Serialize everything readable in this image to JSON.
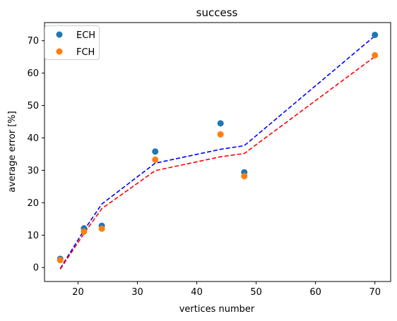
{
  "chart_data": {
    "type": "scatter",
    "title": "success",
    "xlabel": "vertices number",
    "ylabel": "average error [%]",
    "xlim": [
      14.35,
      72.65
    ],
    "ylim": [
      -4.3,
      75.6
    ],
    "xticks": [
      20,
      30,
      40,
      50,
      60,
      70
    ],
    "yticks": [
      0,
      10,
      20,
      30,
      40,
      50,
      60,
      70
    ],
    "grid": false,
    "legend": "top-left",
    "series": [
      {
        "name": "ECH",
        "kind": "points",
        "color": "#1f77b4",
        "x": [
          17,
          21,
          24,
          33,
          44,
          48,
          70
        ],
        "y": [
          2.7,
          12.1,
          12.9,
          35.8,
          44.5,
          29.4,
          71.8
        ]
      },
      {
        "name": "FCH",
        "kind": "points",
        "color": "#ff7f0e",
        "x": [
          17,
          21,
          24,
          33,
          44,
          48,
          70
        ],
        "y": [
          2.3,
          11.1,
          12.0,
          33.3,
          41.1,
          28.2,
          65.5
        ]
      }
    ],
    "lines": [
      {
        "kind": "dashed-line",
        "color": "#0000ff",
        "x": [
          17,
          21,
          24,
          33,
          44,
          48,
          70
        ],
        "y": [
          -0.3,
          11.5,
          19.6,
          32.2,
          36.5,
          37.6,
          71.5
        ]
      },
      {
        "kind": "dashed-line",
        "color": "#ff0000",
        "x": [
          17,
          21,
          24,
          33,
          44,
          48,
          70
        ],
        "y": [
          -0.5,
          10.5,
          18.2,
          29.9,
          34.2,
          35.2,
          65.1
        ]
      }
    ]
  }
}
